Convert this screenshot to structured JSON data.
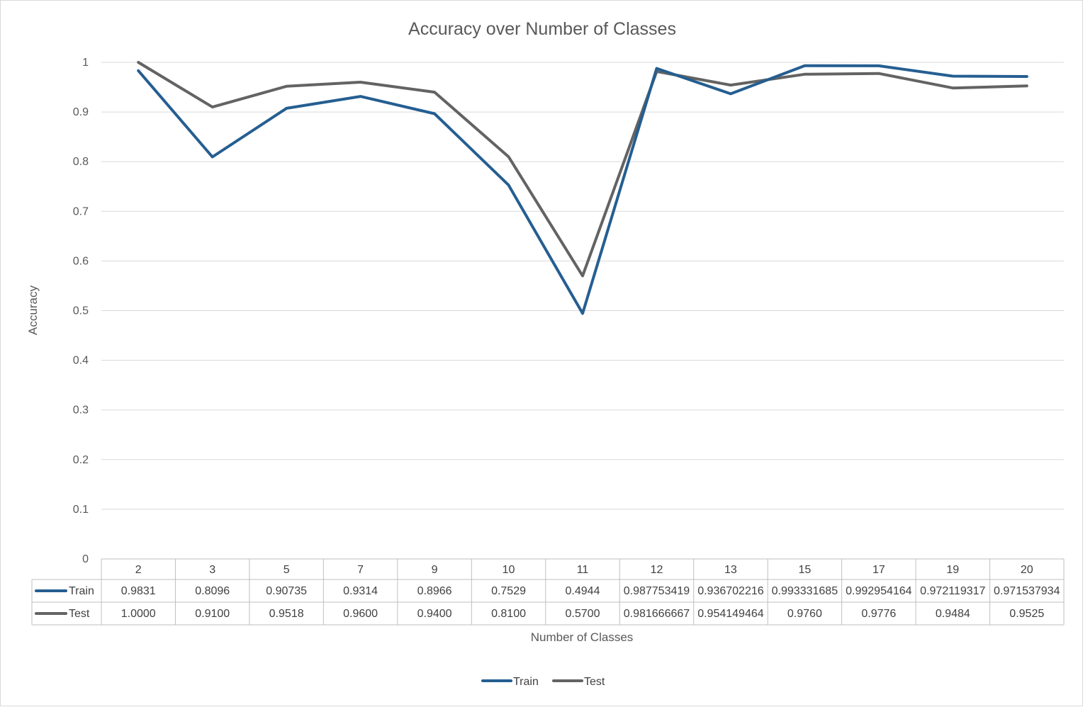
{
  "chart_data": {
    "type": "line",
    "title": "Accuracy over Number of Classes",
    "xlabel": "Number of Classes",
    "ylabel": "Accuracy",
    "ylim": [
      0,
      1
    ],
    "yticks": [
      "0",
      "0.1",
      "0.2",
      "0.3",
      "0.4",
      "0.5",
      "0.6",
      "0.7",
      "0.8",
      "0.9",
      "1"
    ],
    "grid": true,
    "legend_position": "bottom",
    "data_table": true,
    "categories": [
      "2",
      "3",
      "5",
      "7",
      "9",
      "10",
      "11",
      "12",
      "13",
      "15",
      "17",
      "19",
      "20"
    ],
    "series": [
      {
        "name": "Train",
        "color": "#255e91",
        "values": [
          0.9831,
          0.8096,
          0.90735,
          0.9314,
          0.8966,
          0.7529,
          0.4944,
          0.987753419,
          0.936702216,
          0.993331685,
          0.992954164,
          0.972119317,
          0.971537934
        ],
        "labels": [
          "0.9831",
          "0.8096",
          "0.90735",
          "0.9314",
          "0.8966",
          "0.7529",
          "0.4944",
          "0.987753419",
          "0.936702216",
          "0.993331685",
          "0.992954164",
          "0.972119317",
          "0.971537934"
        ]
      },
      {
        "name": "Test",
        "color": "#636363",
        "values": [
          1.0,
          0.91,
          0.9518,
          0.96,
          0.94,
          0.81,
          0.57,
          0.981666667,
          0.954149464,
          0.976,
          0.9776,
          0.9484,
          0.9525
        ],
        "labels": [
          "1.0000",
          "0.9100",
          "0.9518",
          "0.9600",
          "0.9400",
          "0.8100",
          "0.5700",
          "0.981666667",
          "0.954149464",
          "0.9760",
          "0.9776",
          "0.9484",
          "0.9525"
        ]
      }
    ]
  }
}
